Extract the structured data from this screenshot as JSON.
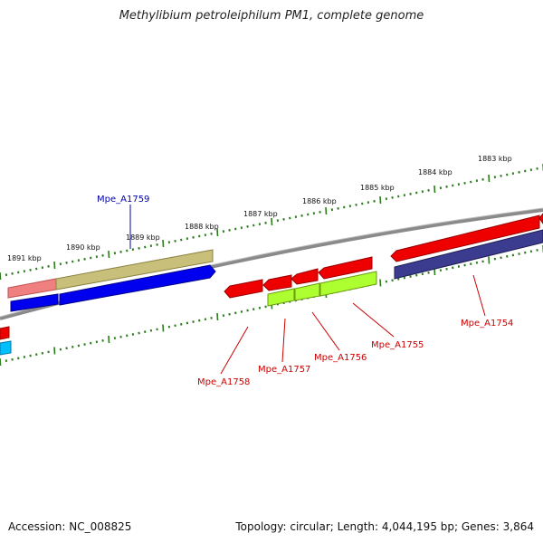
{
  "title": "Methylibium petroleiphilum PM1, complete genome",
  "accession": "Accession: NC_008825",
  "summary": "Topology: circular; Length: 4,044,195 bp; Genes: 3,864",
  "colors": {
    "backbone": "#7f7f7f",
    "tick": "#2e7d1f",
    "red_label": "#cc0000",
    "blue_label": "#0000aa"
  },
  "kbp_labels": [
    "1883 kbp",
    "1884 kbp",
    "1885 kbp",
    "1886 kbp",
    "1887 kbp",
    "1888 kbp",
    "1889 kbp",
    "1890 kbp",
    "1891 kbp"
  ],
  "gene_labels": [
    {
      "name": "Mpe_A1759",
      "color": "#0000aa"
    },
    {
      "name": "Mpe_A1758",
      "color": "#cc0000"
    },
    {
      "name": "Mpe_A1757",
      "color": "#cc0000"
    },
    {
      "name": "Mpe_A1756",
      "color": "#cc0000"
    },
    {
      "name": "Mpe_A1755",
      "color": "#cc0000"
    },
    {
      "name": "Mpe_A1754",
      "color": "#cc0000"
    }
  ]
}
